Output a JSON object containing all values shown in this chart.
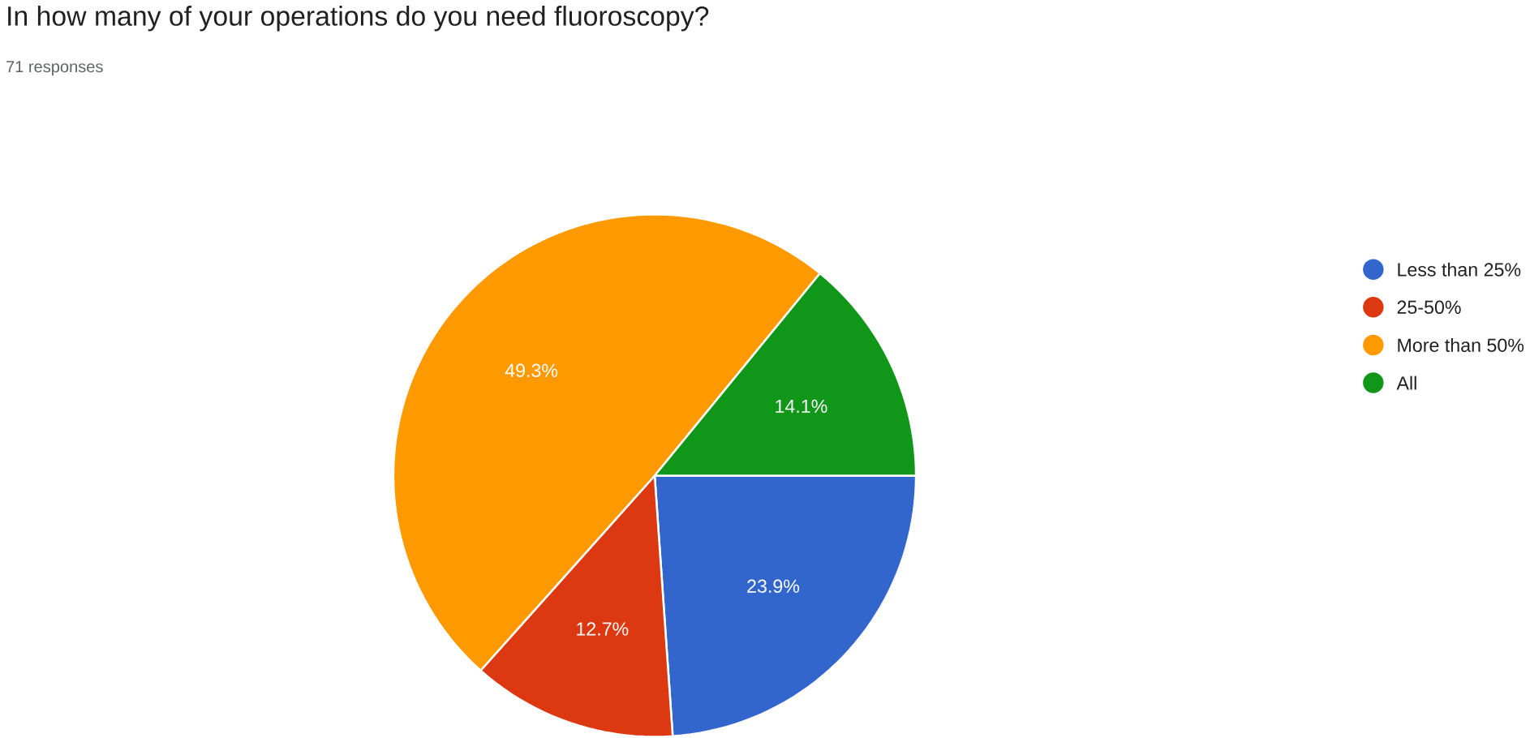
{
  "chart_data": {
    "type": "pie",
    "title": "In how many of your operations do you need fluoroscopy?",
    "subtitle": "71 responses",
    "categories": [
      "Less than 25%",
      "25-50%",
      "More than 50%",
      "All"
    ],
    "values": [
      23.9,
      12.7,
      49.3,
      14.1
    ],
    "colors": [
      "#3366cc",
      "#dc3912",
      "#ff9900",
      "#109618"
    ],
    "value_labels": [
      "23.9%",
      "12.7%",
      "49.3%",
      "14.1%"
    ],
    "legend": "right"
  }
}
